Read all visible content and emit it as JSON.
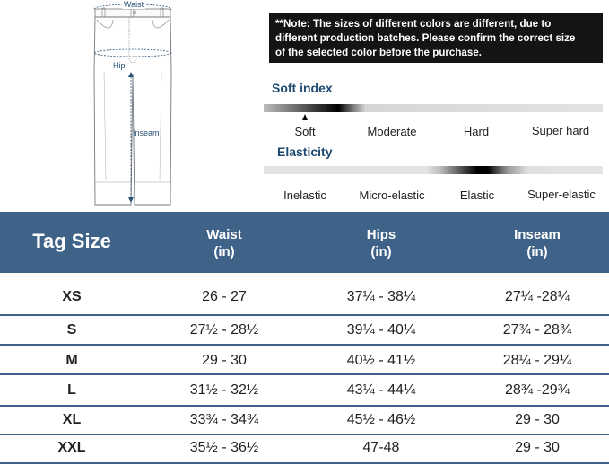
{
  "diagram": {
    "labels": {
      "waist": "Waist",
      "hip": "Hip",
      "inseam": "Inseam"
    },
    "icon": "jeans-outline"
  },
  "note": {
    "lines": [
      "**Note: The sizes of different colors are different, due to",
      "different production batches. Please confirm the correct size",
      "of the selected color before the purchase."
    ]
  },
  "soft_index": {
    "title": "Soft index",
    "labels": [
      "Soft",
      "Moderate",
      "Hard",
      "Super hard"
    ],
    "selected": "Soft"
  },
  "elasticity": {
    "title": "Elasticity",
    "labels": [
      "Inelastic",
      "Micro-elastic",
      "Elastic",
      "Super-elastic"
    ],
    "selected": "Elastic"
  },
  "table": {
    "header": {
      "tag_size": "Tag Size",
      "columns": [
        {
          "name": "Waist",
          "unit": "(in)"
        },
        {
          "name": "Hips",
          "unit": "(in)"
        },
        {
          "name": "Inseam",
          "unit": "(in)"
        }
      ]
    },
    "rows": [
      {
        "size": "XS",
        "waist": "26 - 27",
        "hips": "37¼ - 38¼",
        "inseam": "27¼ -28¼"
      },
      {
        "size": "S",
        "waist": "27½ - 28½",
        "hips": "39¼ - 40¼",
        "inseam": "27¾ - 28¾"
      },
      {
        "size": "M",
        "waist": "29 - 30",
        "hips": "40½ - 41½",
        "inseam": "28¼ - 29¼"
      },
      {
        "size": "L",
        "waist": "31½ - 32½",
        "hips": "43¼ - 44¼",
        "inseam": "28¾ -29¾"
      },
      {
        "size": "XL",
        "waist": "33¾ - 34¾",
        "hips": "45½ - 46½",
        "inseam": "29 - 30"
      },
      {
        "size": "XXL",
        "waist": "35½ - 36½",
        "hips": "47-48",
        "inseam": "29 - 30"
      }
    ]
  },
  "colors": {
    "header_bg": "#3f6288",
    "accent_text": "#1e4a72",
    "note_bg": "#141414"
  }
}
